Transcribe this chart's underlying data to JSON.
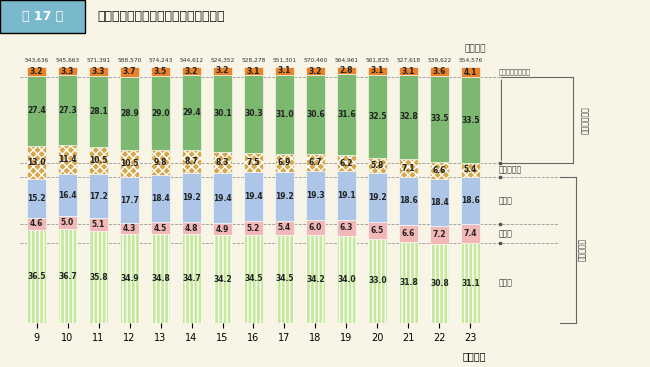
{
  "title_box": "第 17 図",
  "title_main": "一般財源充当額の性質別構成比の推移",
  "years": [
    9,
    10,
    11,
    12,
    13,
    14,
    15,
    16,
    17,
    18,
    19,
    20,
    21,
    22,
    23
  ],
  "totals": [
    "543,636",
    "545,663",
    "571,391",
    "588,570",
    "574,243",
    "544,612",
    "524,352",
    "528,278",
    "551,301",
    "570,460",
    "564,961",
    "561,825",
    "527,618",
    "539,622",
    "554,576"
  ],
  "jinken": [
    36.5,
    36.7,
    35.8,
    34.9,
    34.8,
    34.7,
    34.2,
    34.5,
    34.5,
    34.2,
    34.0,
    33.0,
    31.8,
    30.8,
    31.1
  ],
  "fujo": [
    4.6,
    5.0,
    5.1,
    4.3,
    4.5,
    4.8,
    4.9,
    5.2,
    5.4,
    6.0,
    6.3,
    6.5,
    6.6,
    7.2,
    7.4
  ],
  "kosai": [
    15.2,
    16.4,
    17.2,
    17.7,
    18.4,
    19.2,
    19.4,
    19.4,
    19.2,
    19.3,
    19.1,
    19.2,
    18.6,
    18.4,
    18.6
  ],
  "toshi": [
    13.0,
    11.4,
    10.5,
    10.5,
    9.8,
    8.7,
    8.3,
    7.5,
    6.9,
    6.7,
    6.2,
    5.8,
    7.1,
    6.6,
    5.4
  ],
  "sono": [
    27.4,
    27.3,
    28.1,
    28.9,
    29.0,
    29.4,
    30.1,
    30.3,
    31.0,
    30.6,
    31.6,
    32.5,
    32.8,
    33.5,
    33.5
  ],
  "kurikoshi": [
    3.2,
    3.3,
    3.3,
    3.7,
    3.5,
    3.2,
    3.2,
    3.1,
    3.1,
    3.2,
    2.8,
    3.1,
    3.1,
    3.6,
    4.1
  ],
  "colors": {
    "jinken": "#c5e89a",
    "fujo": "#f2b8b8",
    "kosai": "#adc6e8",
    "toshi": "#d4a84b",
    "sono": "#7db870",
    "kurikoshi": "#e8832a"
  },
  "bg_color": "#f8f4e6",
  "header_bg": "#7ab8cc",
  "header_text_color": "#ffffff",
  "dashed_line_color": "#aaaaaa"
}
